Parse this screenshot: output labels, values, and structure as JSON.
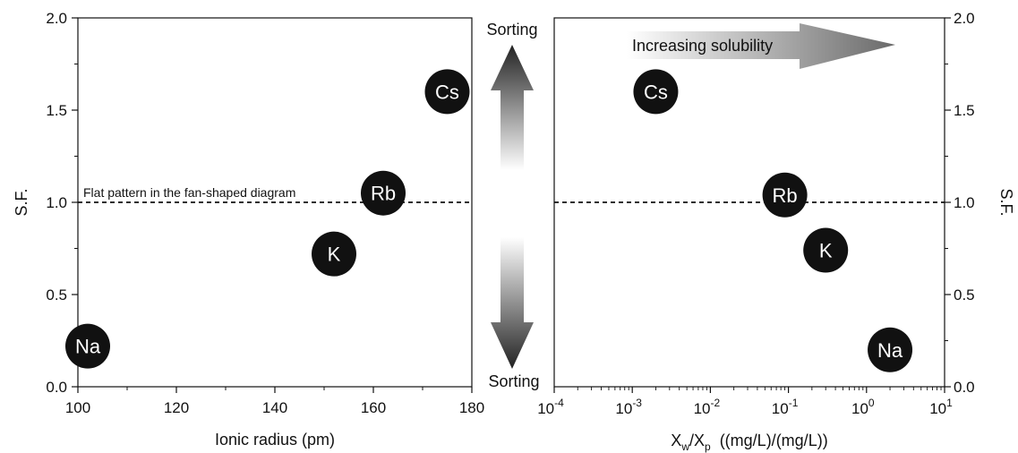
{
  "chart_data": [
    {
      "type": "scatter",
      "xlabel": "Ionic radius (pm)",
      "ylabel": "S.F.",
      "xlim": [
        100,
        180
      ],
      "ylim": [
        0,
        2.0
      ],
      "x_ticks": [
        "100",
        "120",
        "140",
        "160",
        "180"
      ],
      "y_ticks": [
        "0.0",
        "0.5",
        "1.0",
        "1.5",
        "2.0"
      ],
      "points": [
        {
          "label": "Na",
          "x": 102,
          "y": 0.22
        },
        {
          "label": "K",
          "x": 152,
          "y": 0.72
        },
        {
          "label": "Rb",
          "x": 162,
          "y": 1.05
        },
        {
          "label": "Cs",
          "x": 175,
          "y": 1.6
        }
      ],
      "reference_line": {
        "y": 1.0,
        "style": "dashed",
        "label": "Flat pattern in the fan-shaped diagram"
      }
    },
    {
      "type": "scatter",
      "xlabel_main": "X",
      "xlabel_sub1": "w",
      "xlabel_sep": "/X",
      "xlabel_sub2": "p",
      "xlabel_units": "((mg/L)/(mg/L))",
      "ylabel": "S.F.",
      "x_scale": "log",
      "xlim": [
        0.0001,
        10
      ],
      "ylim": [
        0,
        2.0
      ],
      "x_ticks": [
        {
          "base": "10",
          "exp": "-4"
        },
        {
          "base": "10",
          "exp": "-3"
        },
        {
          "base": "10",
          "exp": "-2"
        },
        {
          "base": "10",
          "exp": "-1"
        },
        {
          "base": "10",
          "exp": "0"
        },
        {
          "base": "10",
          "exp": "1"
        }
      ],
      "y_ticks": [
        "0.0",
        "0.5",
        "1.0",
        "1.5",
        "2.0"
      ],
      "points": [
        {
          "label": "Cs",
          "x": 0.002,
          "y": 1.6
        },
        {
          "label": "Rb",
          "x": 0.09,
          "y": 1.04
        },
        {
          "label": "K",
          "x": 0.3,
          "y": 0.74
        },
        {
          "label": "Na",
          "x": 2.0,
          "y": 0.2
        }
      ],
      "reference_line": {
        "y": 1.0,
        "style": "dashed"
      },
      "annotation": "Increasing solubility"
    }
  ],
  "middle": {
    "top_label": "Sorting",
    "bottom_label": "Sorting"
  },
  "colors": {
    "marker": "#111111",
    "marker_text": "#ffffff",
    "axis": "#111111"
  }
}
